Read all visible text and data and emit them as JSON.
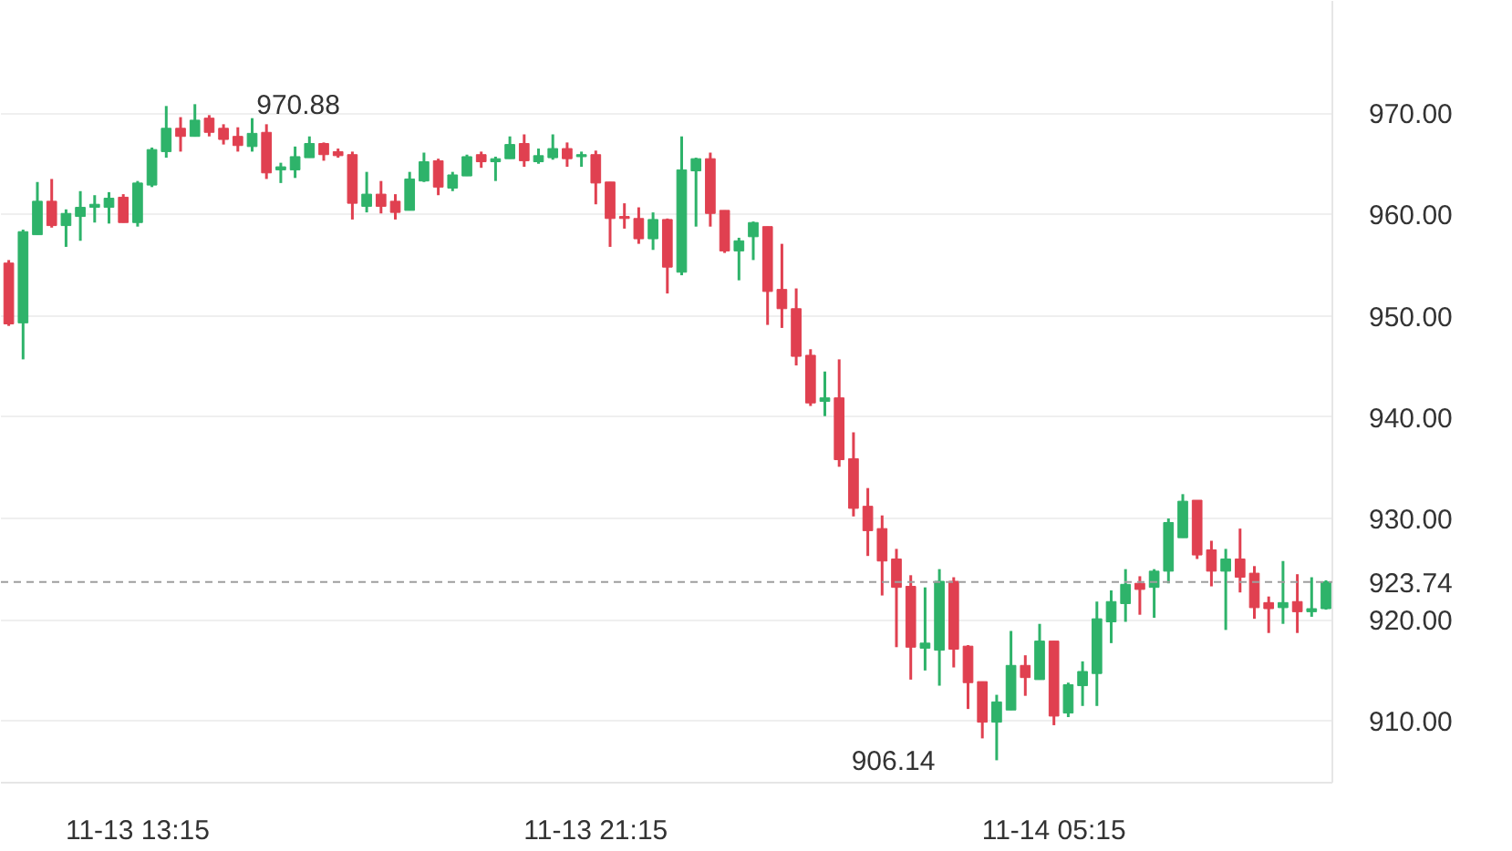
{
  "chart_data": {
    "type": "candlestick",
    "categories": [
      null,
      null,
      null,
      null,
      null,
      null,
      null,
      null,
      null,
      "11-13 13:15",
      null,
      null,
      null,
      null,
      null,
      null,
      null,
      null,
      null,
      null,
      null,
      null,
      null,
      null,
      null,
      null,
      null,
      null,
      null,
      null,
      null,
      null,
      null,
      null,
      null,
      null,
      null,
      null,
      null,
      null,
      null,
      "11-13 21:15",
      null,
      null,
      null,
      null,
      null,
      null,
      null,
      null,
      null,
      null,
      null,
      null,
      null,
      null,
      null,
      null,
      null,
      null,
      null,
      null,
      null,
      null,
      null,
      null,
      null,
      null,
      null,
      null,
      null,
      null,
      null,
      "11-14 05:15",
      null,
      null,
      null,
      null,
      null,
      null,
      null,
      null,
      null,
      null,
      null,
      null,
      null,
      null,
      null,
      null,
      null,
      null,
      null
    ],
    "ohlc": [
      [
        955.2,
        955.5,
        949.0,
        949.2
      ],
      [
        949.3,
        958.5,
        945.7,
        958.3
      ],
      [
        958.0,
        963.2,
        958.0,
        961.3
      ],
      [
        961.3,
        963.5,
        958.7,
        958.9
      ],
      [
        958.9,
        960.5,
        956.8,
        960.1
      ],
      [
        959.8,
        962.3,
        957.4,
        960.7
      ],
      [
        960.7,
        961.9,
        959.2,
        961.0
      ],
      [
        960.7,
        962.2,
        959.1,
        961.6
      ],
      [
        961.7,
        962.0,
        959.2,
        959.2
      ],
      [
        959.2,
        963.3,
        958.8,
        963.1
      ],
      [
        962.9,
        966.6,
        962.7,
        966.4
      ],
      [
        966.2,
        970.7,
        965.6,
        968.5
      ],
      [
        968.5,
        969.6,
        966.2,
        967.7
      ],
      [
        967.7,
        970.88,
        967.7,
        969.3
      ],
      [
        969.5,
        969.8,
        967.7,
        968.1
      ],
      [
        968.5,
        968.9,
        966.9,
        967.4
      ],
      [
        967.7,
        968.6,
        966.2,
        966.8
      ],
      [
        966.7,
        969.5,
        966.2,
        968.0
      ],
      [
        968.1,
        968.9,
        963.5,
        964.1
      ],
      [
        964.4,
        965.1,
        963.1,
        964.7
      ],
      [
        964.4,
        966.7,
        963.6,
        965.7
      ],
      [
        965.6,
        967.7,
        965.6,
        967.0
      ],
      [
        967.0,
        967.1,
        965.3,
        965.9
      ],
      [
        966.2,
        966.5,
        965.6,
        965.8
      ],
      [
        965.9,
        966.2,
        959.5,
        961.1
      ],
      [
        960.8,
        964.2,
        960.2,
        962.0
      ],
      [
        962.0,
        963.3,
        960.1,
        960.8
      ],
      [
        961.3,
        962.0,
        959.5,
        960.2
      ],
      [
        960.4,
        964.2,
        960.4,
        963.5
      ],
      [
        963.3,
        966.1,
        963.2,
        965.2
      ],
      [
        965.3,
        965.5,
        961.9,
        962.7
      ],
      [
        962.6,
        964.2,
        962.3,
        963.9
      ],
      [
        963.8,
        965.9,
        963.8,
        965.7
      ],
      [
        965.9,
        966.2,
        964.6,
        965.2
      ],
      [
        965.2,
        965.7,
        963.3,
        965.5
      ],
      [
        965.5,
        967.7,
        965.5,
        966.9
      ],
      [
        967.0,
        967.9,
        964.7,
        965.3
      ],
      [
        965.2,
        966.5,
        965.0,
        965.8
      ],
      [
        965.6,
        967.9,
        965.4,
        966.5
      ],
      [
        966.5,
        967.1,
        964.7,
        965.5
      ],
      [
        965.7,
        966.2,
        964.7,
        965.9
      ],
      [
        965.9,
        966.3,
        961.0,
        963.1
      ],
      [
        963.2,
        963.2,
        956.8,
        959.6
      ],
      [
        959.8,
        961.1,
        958.6,
        959.6
      ],
      [
        959.6,
        960.7,
        957.1,
        957.6
      ],
      [
        957.6,
        960.2,
        956.5,
        959.5
      ],
      [
        959.5,
        959.6,
        952.2,
        954.8
      ],
      [
        954.3,
        967.7,
        954.0,
        964.4
      ],
      [
        964.3,
        965.6,
        958.8,
        965.5
      ],
      [
        965.5,
        966.1,
        958.8,
        960.1
      ],
      [
        960.4,
        960.4,
        956.2,
        956.4
      ],
      [
        956.4,
        957.7,
        953.5,
        957.4
      ],
      [
        957.8,
        959.3,
        955.5,
        959.2
      ],
      [
        958.8,
        958.8,
        949.1,
        952.4
      ],
      [
        952.6,
        957.1,
        948.8,
        950.7
      ],
      [
        950.7,
        952.7,
        945.1,
        946.0
      ],
      [
        946.1,
        946.7,
        941.1,
        941.4
      ],
      [
        941.55,
        944.5,
        940.1,
        941.9
      ],
      [
        941.9,
        945.7,
        935.1,
        935.8
      ],
      [
        935.9,
        938.5,
        930.2,
        931.0
      ],
      [
        931.2,
        933.0,
        926.3,
        928.8
      ],
      [
        929.0,
        930.3,
        922.4,
        925.8
      ],
      [
        926.0,
        927.0,
        917.3,
        923.2
      ],
      [
        923.3,
        924.4,
        914.1,
        917.3
      ],
      [
        917.2,
        923.2,
        915.0,
        917.7
      ],
      [
        917.0,
        925.0,
        913.5,
        923.8
      ],
      [
        923.8,
        924.2,
        915.3,
        917.1
      ],
      [
        917.4,
        917.5,
        911.2,
        913.8
      ],
      [
        913.9,
        913.9,
        908.3,
        909.9
      ],
      [
        909.9,
        912.6,
        906.14,
        911.9
      ],
      [
        911.1,
        918.9,
        911.1,
        915.5
      ],
      [
        915.5,
        916.5,
        912.5,
        914.3
      ],
      [
        914.1,
        919.6,
        914.1,
        917.9
      ],
      [
        917.9,
        917.9,
        909.6,
        910.5
      ],
      [
        910.8,
        913.8,
        910.4,
        913.6
      ],
      [
        913.5,
        915.9,
        911.5,
        914.9
      ],
      [
        914.7,
        921.8,
        911.5,
        920.1
      ],
      [
        919.8,
        922.9,
        917.7,
        921.8
      ],
      [
        921.6,
        925.0,
        919.8,
        923.5
      ],
      [
        923.6,
        924.3,
        920.5,
        923.0
      ],
      [
        923.2,
        925.0,
        920.2,
        924.8
      ],
      [
        924.8,
        930.0,
        923.6,
        929.6
      ],
      [
        928.1,
        932.4,
        928.1,
        931.7
      ],
      [
        931.8,
        931.8,
        926.0,
        926.4
      ],
      [
        926.9,
        927.8,
        923.3,
        924.8
      ],
      [
        924.8,
        927.0,
        919.0,
        926.0
      ],
      [
        926.0,
        929.0,
        922.7,
        924.2
      ],
      [
        924.6,
        925.3,
        920.1,
        921.2
      ],
      [
        921.7,
        922.3,
        918.7,
        921.1
      ],
      [
        921.2,
        925.8,
        919.6,
        921.7
      ],
      [
        921.8,
        924.5,
        918.7,
        920.8
      ],
      [
        920.8,
        924.2,
        920.3,
        921.1
      ],
      [
        921.1,
        923.9,
        921.0,
        923.74
      ]
    ],
    "colors": [
      "#e04050",
      "#2eb36a",
      "#2eb36a",
      "#e04050",
      "#2eb36a",
      "#2eb36a",
      "#2eb36a",
      "#2eb36a",
      "#e04050",
      "#2eb36a",
      "#2eb36a",
      "#2eb36a",
      "#e04050",
      "#2eb36a",
      "#e04050",
      "#e04050",
      "#e04050",
      "#2eb36a",
      "#e04050",
      "#2eb36a",
      "#2eb36a",
      "#2eb36a",
      "#e04050",
      "#e04050",
      "#e04050",
      "#2eb36a",
      "#e04050",
      "#e04050",
      "#2eb36a",
      "#2eb36a",
      "#e04050",
      "#2eb36a",
      "#2eb36a",
      "#e04050",
      "#2eb36a",
      "#2eb36a",
      "#e04050",
      "#2eb36a",
      "#2eb36a",
      "#e04050",
      "#2eb36a",
      "#e04050",
      "#e04050",
      "#e04050",
      "#e04050",
      "#2eb36a",
      "#e04050",
      "#2eb36a",
      "#2eb36a",
      "#e04050",
      "#e04050",
      "#2eb36a",
      "#2eb36a",
      "#e04050",
      "#e04050",
      "#e04050",
      "#e04050",
      "#2eb36a",
      "#e04050",
      "#e04050",
      "#e04050",
      "#e04050",
      "#e04050",
      "#e04050",
      "#2eb36a",
      "#2eb36a",
      "#e04050",
      "#e04050",
      "#e04050",
      "#2eb36a",
      "#2eb36a",
      "#e04050",
      "#2eb36a",
      "#e04050",
      "#2eb36a",
      "#2eb36a",
      "#2eb36a",
      "#2eb36a",
      "#2eb36a",
      "#e04050",
      "#2eb36a",
      "#2eb36a",
      "#2eb36a",
      "#e04050",
      "#e04050",
      "#2eb36a",
      "#e04050",
      "#e04050",
      "#e04050",
      "#2eb36a",
      "#e04050",
      "#2eb36a",
      "#2eb36a"
    ],
    "ylim": [
      903.93,
      981.07
    ],
    "yticks": [
      {
        "value": 910,
        "label": "910.00"
      },
      {
        "value": 920,
        "label": "920.00"
      },
      {
        "value": 930,
        "label": "930.00"
      },
      {
        "value": 940,
        "label": "940.00"
      },
      {
        "value": 950,
        "label": "950.00"
      },
      {
        "value": 960,
        "label": "960.00"
      },
      {
        "value": 970,
        "label": "970.00"
      }
    ],
    "grid": "y",
    "ref_lines": [
      {
        "axis": "y",
        "value": 923.74,
        "label": "923.74",
        "color": "#9e9e9e",
        "line_style": "dashed"
      }
    ],
    "annotations": [
      "970.88",
      "906.14"
    ]
  }
}
